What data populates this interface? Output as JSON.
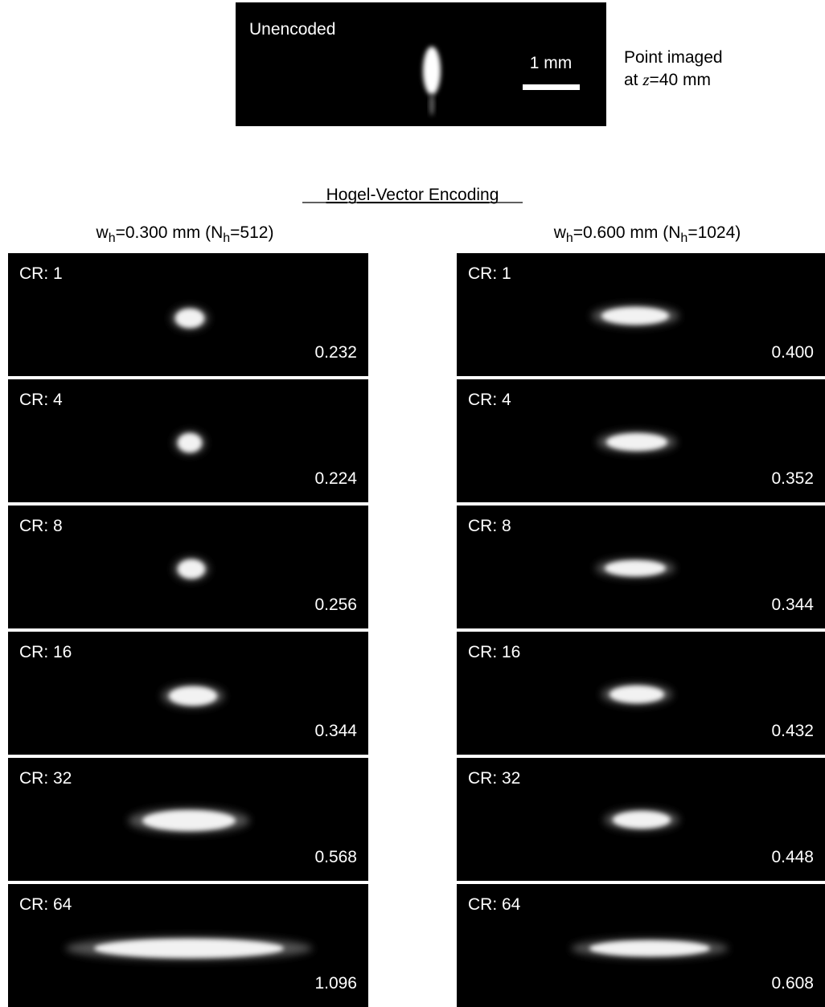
{
  "top_panel": {
    "label": "Unencoded",
    "scale_bar": "1 mm",
    "note": [
      [
        {
          "text": "Point imaged"
        }
      ],
      [
        {
          "text": "at "
        },
        {
          "italic": "z"
        },
        {
          "text": "=40 mm"
        }
      ]
    ]
  },
  "section_title": "Hogel-Vector Encoding",
  "columns": [
    {
      "header": [
        {
          "text": "w"
        },
        {
          "sub": "h"
        },
        {
          "text": "=0.300 mm (N"
        },
        {
          "sub": "h"
        },
        {
          "text": "=512)"
        }
      ],
      "panels": [
        {
          "label": "CR: 1",
          "value": "0.232"
        },
        {
          "label": "CR: 4",
          "value": "0.224"
        },
        {
          "label": "CR: 8",
          "value": "0.256"
        },
        {
          "label": "CR: 16",
          "value": "0.344"
        },
        {
          "label": "CR: 32",
          "value": "0.568"
        },
        {
          "label": "CR: 64",
          "value": "1.096"
        }
      ]
    },
    {
      "header": [
        {
          "text": "w"
        },
        {
          "sub": "h"
        },
        {
          "text": "=0.600 mm (N"
        },
        {
          "sub": "h"
        },
        {
          "text": "=1024)"
        }
      ],
      "panels": [
        {
          "label": "CR: 1",
          "value": "0.400"
        },
        {
          "label": "CR: 4",
          "value": "0.352"
        },
        {
          "label": "CR: 8",
          "value": "0.344"
        },
        {
          "label": "CR: 16",
          "value": "0.432"
        },
        {
          "label": "CR: 32",
          "value": "0.448"
        },
        {
          "label": "CR: 64",
          "value": "0.608"
        }
      ]
    }
  ]
}
